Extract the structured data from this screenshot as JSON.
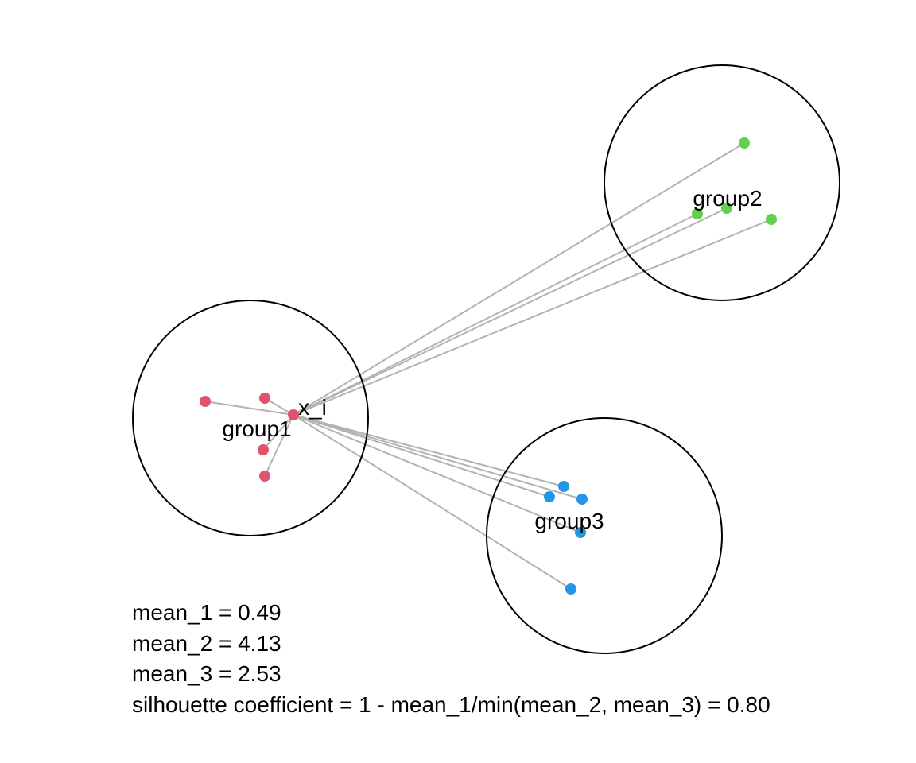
{
  "diagram": {
    "colors": {
      "group1": "#DF536B",
      "group2": "#61D04F",
      "group3": "#2297E6",
      "connector": "#B3B3B3",
      "circle": "#000000"
    },
    "labels": {
      "focus_point": "x_i",
      "group1": "group1",
      "group2": "group2",
      "group3": "group3"
    },
    "group_point_counts": {
      "group1": 5,
      "group2": 4,
      "group3": 5
    }
  },
  "stats": {
    "mean_1": "mean_1 = 0.49",
    "mean_2": "mean_2 = 4.13",
    "mean_3": "mean_3 = 2.53",
    "silhouette": "silhouette coefficient = 1 - mean_1/min(mean_2, mean_3) = 0.80"
  }
}
